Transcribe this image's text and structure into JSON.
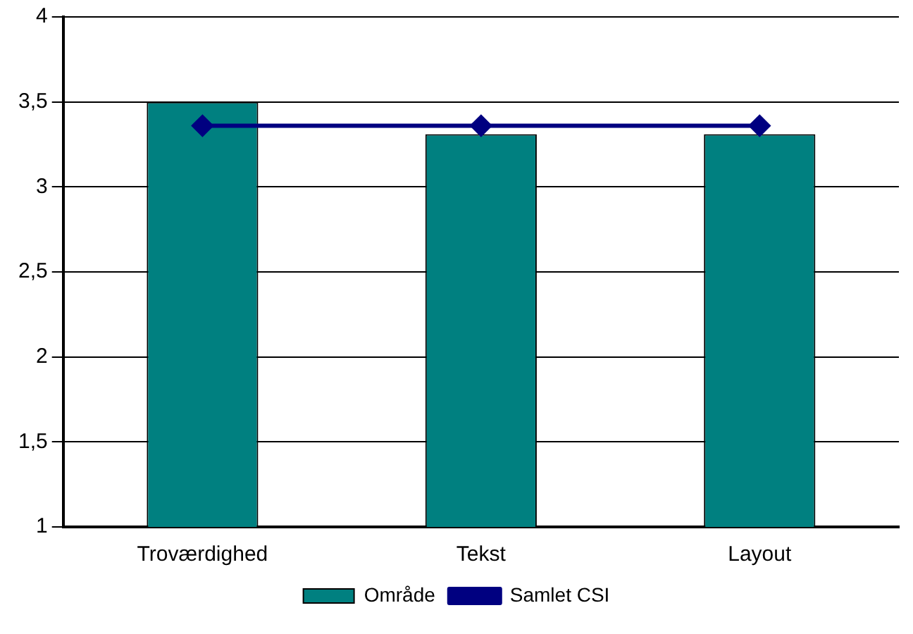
{
  "chart_data": {
    "type": "bar",
    "categories": [
      "Troværdighed",
      "Tekst",
      "Layout"
    ],
    "series": [
      {
        "name": "Område",
        "color": "#008080",
        "values": [
          3.5,
          3.31,
          3.31
        ]
      },
      {
        "name": "Samlet CSI",
        "type": "line",
        "color": "#000080",
        "values": [
          3.36,
          3.36,
          3.36
        ],
        "marker": "diamond"
      }
    ],
    "ylim": [
      1,
      4
    ],
    "yticks": [
      1,
      {
        "value": 1.5,
        "label": "1,5"
      },
      2,
      {
        "value": 2.5,
        "label": "2,5"
      },
      3,
      {
        "value": 3.5,
        "label": "3,5"
      },
      4
    ],
    "grid": "y",
    "legend": "bottom"
  }
}
